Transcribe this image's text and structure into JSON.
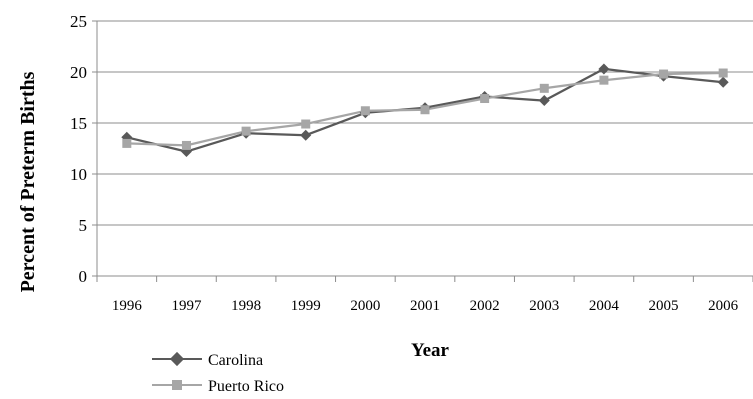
{
  "chart_data": {
    "type": "line",
    "title": "",
    "xlabel": "Year",
    "ylabel": "Percent of Preterm Births",
    "categories": [
      "1996",
      "1997",
      "1998",
      "1999",
      "2000",
      "2001",
      "2002",
      "2003",
      "2004",
      "2005",
      "2006"
    ],
    "ylim": [
      0,
      25
    ],
    "yticks": [
      "0",
      "5",
      "10",
      "15",
      "20",
      "25"
    ],
    "grid": "horizontal",
    "legend": "bottom-left",
    "series": [
      {
        "name": "Carolina",
        "color": "#595959",
        "marker": "diamond",
        "values": [
          13.6,
          12.2,
          14.0,
          13.8,
          16.0,
          16.5,
          17.6,
          17.2,
          20.3,
          19.6,
          19.0
        ]
      },
      {
        "name": "Puerto Rico",
        "color": "#a6a6a6",
        "marker": "square",
        "values": [
          13.0,
          12.8,
          14.2,
          14.9,
          16.2,
          16.3,
          17.4,
          18.4,
          19.2,
          19.8,
          19.9
        ]
      }
    ]
  }
}
